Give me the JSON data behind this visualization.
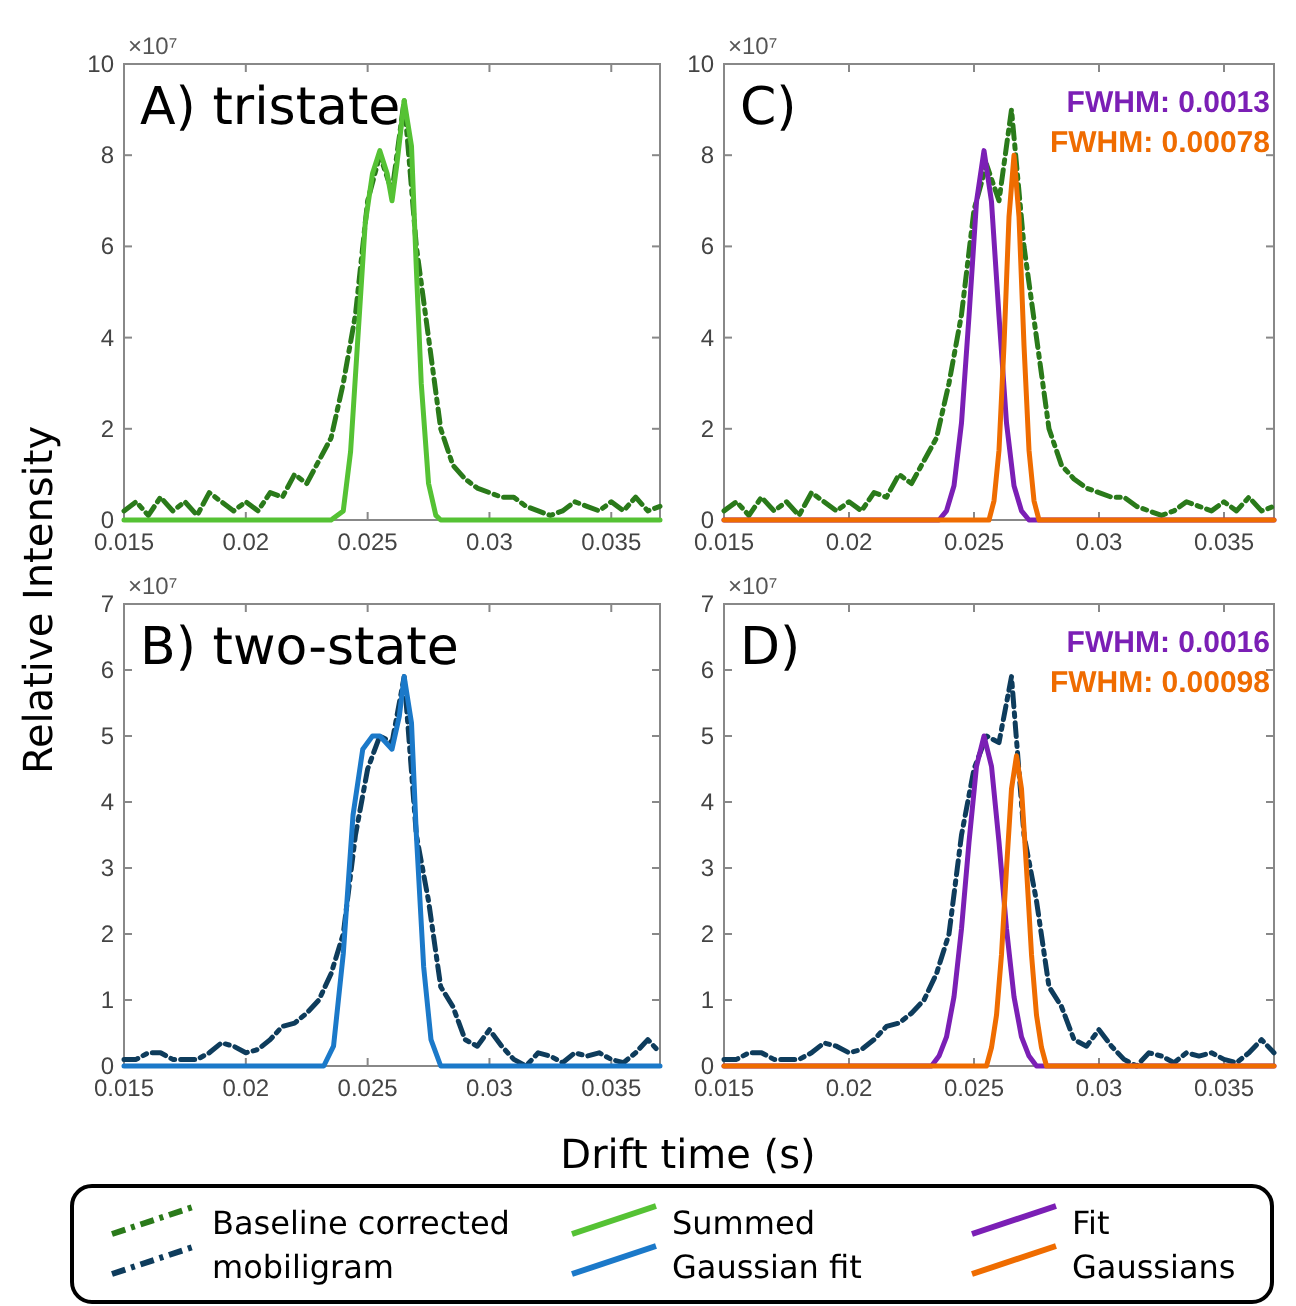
{
  "chart_data": [
    {
      "type": "line",
      "title": "A) tristate",
      "ylabel": "Relative Intensity",
      "legend": "bottom",
      "xlim": [
        0.015,
        0.037
      ],
      "xticks": [
        0.015,
        0.02,
        0.025,
        0.03,
        0.035
      ],
      "ylim": [
        0,
        10
      ],
      "yticks": [
        0,
        2,
        4,
        6,
        8,
        10
      ],
      "annotations": [
        "×10⁷"
      ],
      "series": [
        {
          "name": "Baseline corrected mobiligram",
          "color": "#2a7a1a",
          "line_style": "dashed",
          "x": [
            0.015,
            0.0155,
            0.016,
            0.0165,
            0.017,
            0.0175,
            0.018,
            0.0185,
            0.019,
            0.0195,
            0.02,
            0.0205,
            0.021,
            0.0215,
            0.022,
            0.0225,
            0.023,
            0.0235,
            0.024,
            0.0245,
            0.025,
            0.0255,
            0.026,
            0.0265,
            0.027,
            0.0275,
            0.028,
            0.0285,
            0.029,
            0.0295,
            0.03,
            0.0305,
            0.031,
            0.0315,
            0.032,
            0.0325,
            0.033,
            0.0335,
            0.034,
            0.0345,
            0.035,
            0.0355,
            0.036,
            0.0365,
            0.037
          ],
          "values": [
            0.2,
            0.4,
            0.1,
            0.5,
            0.2,
            0.4,
            0.1,
            0.6,
            0.4,
            0.2,
            0.4,
            0.2,
            0.6,
            0.5,
            1.0,
            0.8,
            1.3,
            1.8,
            3.0,
            4.5,
            7.0,
            8.0,
            7.2,
            9.2,
            6.0,
            4.0,
            2.0,
            1.2,
            0.9,
            0.7,
            0.6,
            0.5,
            0.5,
            0.3,
            0.2,
            0.1,
            0.2,
            0.4,
            0.3,
            0.2,
            0.4,
            0.2,
            0.5,
            0.2,
            0.3
          ]
        },
        {
          "name": "Summed Gaussian fit",
          "color": "#55c234",
          "x": [
            0.015,
            0.0235,
            0.024,
            0.0243,
            0.0246,
            0.0249,
            0.0252,
            0.0255,
            0.0258,
            0.026,
            0.0262,
            0.0265,
            0.0268,
            0.027,
            0.0272,
            0.0275,
            0.0278,
            0.028,
            0.037
          ],
          "values": [
            0,
            0,
            0.2,
            1.5,
            4,
            6.5,
            7.6,
            8.1,
            7.6,
            7.0,
            7.8,
            9.2,
            8.2,
            5.5,
            3,
            0.8,
            0.1,
            0,
            0
          ]
        }
      ]
    },
    {
      "type": "line",
      "title": "C)",
      "xlim": [
        0.015,
        0.037
      ],
      "xticks": [
        0.015,
        0.02,
        0.025,
        0.03,
        0.035
      ],
      "ylim": [
        0,
        10
      ],
      "yticks": [
        0,
        2,
        4,
        6,
        8,
        10
      ],
      "annotations": [
        "×10⁷",
        "FWHM: 0.0013",
        "FWHM: 0.00078"
      ],
      "series": [
        {
          "name": "Baseline corrected mobiligram",
          "color": "#2a7a1a",
          "line_style": "dashed",
          "x": [
            0.015,
            0.0155,
            0.016,
            0.0165,
            0.017,
            0.0175,
            0.018,
            0.0185,
            0.019,
            0.0195,
            0.02,
            0.0205,
            0.021,
            0.0215,
            0.022,
            0.0225,
            0.023,
            0.0235,
            0.024,
            0.0245,
            0.025,
            0.0255,
            0.026,
            0.0265,
            0.027,
            0.0275,
            0.028,
            0.0285,
            0.029,
            0.0295,
            0.03,
            0.0305,
            0.031,
            0.0315,
            0.032,
            0.0325,
            0.033,
            0.0335,
            0.034,
            0.0345,
            0.035,
            0.0355,
            0.036,
            0.0365,
            0.037
          ],
          "values": [
            0.2,
            0.4,
            0.1,
            0.5,
            0.2,
            0.4,
            0.1,
            0.6,
            0.4,
            0.2,
            0.4,
            0.2,
            0.6,
            0.5,
            1.0,
            0.8,
            1.3,
            1.8,
            3.0,
            4.5,
            6.8,
            7.8,
            7.0,
            9.0,
            6.0,
            4.0,
            2.0,
            1.2,
            0.9,
            0.7,
            0.6,
            0.5,
            0.5,
            0.3,
            0.2,
            0.1,
            0.2,
            0.4,
            0.3,
            0.2,
            0.4,
            0.2,
            0.5,
            0.2,
            0.3
          ]
        },
        {
          "name": "Fit Gaussians",
          "color": "#7b1fb5",
          "x": [
            0.015,
            0.0236,
            0.0239,
            0.0242,
            0.0245,
            0.0248,
            0.0251,
            0.0254,
            0.0257,
            0.026,
            0.0263,
            0.0266,
            0.0269,
            0.0272,
            0.037
          ],
          "values": [
            0,
            0,
            0.2,
            0.75,
            2.13,
            4.47,
            6.98,
            8.1,
            6.98,
            4.47,
            2.13,
            0.75,
            0.2,
            0,
            0
          ]
        },
        {
          "color": "#ef6c00",
          "x": [
            0.015,
            0.0256,
            0.0258,
            0.026,
            0.0262,
            0.0264,
            0.0266,
            0.0268,
            0.027,
            0.0272,
            0.0274,
            0.0276,
            0.037
          ],
          "values": [
            0,
            0,
            0.42,
            1.53,
            3.83,
            6.65,
            8.0,
            6.65,
            3.83,
            1.53,
            0.42,
            0,
            0
          ]
        }
      ]
    },
    {
      "type": "line",
      "title": "B) two-state",
      "xlabel": "Drift time (s)",
      "xlim": [
        0.015,
        0.037
      ],
      "xticks": [
        0.015,
        0.02,
        0.025,
        0.03,
        0.035
      ],
      "ylim": [
        0,
        7
      ],
      "yticks": [
        0,
        1,
        2,
        3,
        4,
        5,
        6,
        7
      ],
      "annotations": [
        "×10⁷"
      ],
      "series": [
        {
          "color": "#0e3c5c",
          "line_style": "dashed",
          "x": [
            0.015,
            0.0155,
            0.016,
            0.0165,
            0.017,
            0.0175,
            0.018,
            0.0185,
            0.019,
            0.0195,
            0.02,
            0.0205,
            0.021,
            0.0215,
            0.022,
            0.0225,
            0.023,
            0.0235,
            0.024,
            0.0245,
            0.025,
            0.0255,
            0.026,
            0.0265,
            0.027,
            0.0275,
            0.028,
            0.0285,
            0.029,
            0.0295,
            0.03,
            0.0305,
            0.031,
            0.0315,
            0.032,
            0.0325,
            0.033,
            0.0335,
            0.034,
            0.0345,
            0.035,
            0.0355,
            0.036,
            0.0365,
            0.037
          ],
          "values": [
            0.1,
            0.1,
            0.2,
            0.2,
            0.1,
            0.1,
            0.1,
            0.2,
            0.35,
            0.3,
            0.2,
            0.25,
            0.4,
            0.6,
            0.65,
            0.8,
            1.0,
            1.4,
            2.0,
            3.5,
            4.5,
            5.0,
            4.9,
            5.9,
            3.5,
            2.5,
            1.2,
            0.9,
            0.4,
            0.3,
            0.55,
            0.3,
            0.1,
            0,
            0.2,
            0.15,
            0.05,
            0.2,
            0.15,
            0.2,
            0.1,
            0.05,
            0.2,
            0.4,
            0.2
          ]
        },
        {
          "color": "#1b79c9",
          "x": [
            0.015,
            0.0232,
            0.0236,
            0.024,
            0.0244,
            0.0248,
            0.0252,
            0.0255,
            0.026,
            0.0263,
            0.0265,
            0.0268,
            0.027,
            0.0273,
            0.0276,
            0.028,
            0.037
          ],
          "values": [
            0,
            0,
            0.3,
            1.7,
            3.8,
            4.8,
            5.0,
            5.0,
            4.8,
            5.3,
            5.9,
            5.2,
            3.5,
            1.5,
            0.4,
            0,
            0
          ]
        }
      ]
    },
    {
      "type": "line",
      "title": "D)",
      "xlim": [
        0.015,
        0.037
      ],
      "xticks": [
        0.015,
        0.02,
        0.025,
        0.03,
        0.035
      ],
      "ylim": [
        0,
        7
      ],
      "yticks": [
        0,
        1,
        2,
        3,
        4,
        5,
        6,
        7
      ],
      "annotations": [
        "×10⁷",
        "FWHM: 0.0016",
        "FWHM: 0.00098"
      ],
      "series": [
        {
          "color": "#0e3c5c",
          "line_style": "dashed",
          "x": [
            0.015,
            0.0155,
            0.016,
            0.0165,
            0.017,
            0.0175,
            0.018,
            0.0185,
            0.019,
            0.0195,
            0.02,
            0.0205,
            0.021,
            0.0215,
            0.022,
            0.0225,
            0.023,
            0.0235,
            0.024,
            0.0245,
            0.025,
            0.0255,
            0.026,
            0.0265,
            0.027,
            0.0275,
            0.028,
            0.0285,
            0.029,
            0.0295,
            0.03,
            0.0305,
            0.031,
            0.0315,
            0.032,
            0.0325,
            0.033,
            0.0335,
            0.034,
            0.0345,
            0.035,
            0.0355,
            0.036,
            0.0365,
            0.037
          ],
          "values": [
            0.1,
            0.1,
            0.2,
            0.2,
            0.1,
            0.1,
            0.1,
            0.2,
            0.35,
            0.3,
            0.2,
            0.25,
            0.4,
            0.6,
            0.65,
            0.8,
            1.0,
            1.4,
            2.0,
            3.5,
            4.5,
            5.0,
            4.9,
            5.9,
            3.5,
            2.5,
            1.2,
            0.9,
            0.4,
            0.3,
            0.55,
            0.3,
            0.1,
            0,
            0.2,
            0.15,
            0.05,
            0.2,
            0.15,
            0.2,
            0.1,
            0.05,
            0.2,
            0.4,
            0.2
          ]
        },
        {
          "color": "#7b1fb5",
          "x": [
            0.015,
            0.0233,
            0.0236,
            0.0239,
            0.0242,
            0.0245,
            0.0248,
            0.0251,
            0.0254,
            0.0257,
            0.026,
            0.0263,
            0.0266,
            0.0269,
            0.0272,
            0.0275,
            0.037
          ],
          "values": [
            0,
            0,
            0.15,
            0.44,
            1.05,
            2.08,
            3.39,
            4.54,
            5.0,
            4.54,
            3.39,
            2.08,
            1.05,
            0.44,
            0.15,
            0,
            0
          ]
        },
        {
          "color": "#ef6c00",
          "x": [
            0.015,
            0.0255,
            0.0257,
            0.0259,
            0.0261,
            0.0263,
            0.0265,
            0.0267,
            0.0269,
            0.0271,
            0.0273,
            0.0275,
            0.0277,
            0.0279,
            0.037
          ],
          "values": [
            0,
            0,
            0.28,
            0.77,
            1.69,
            2.99,
            4.2,
            4.7,
            4.2,
            2.99,
            1.69,
            0.77,
            0.28,
            0,
            0
          ]
        }
      ]
    }
  ]
}
